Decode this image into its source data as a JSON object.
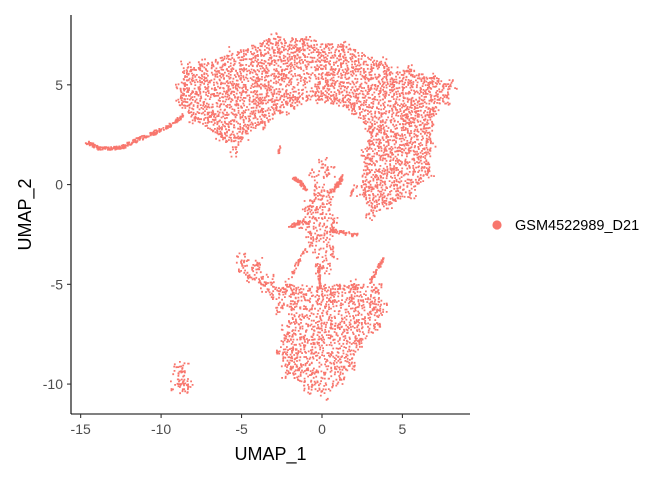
{
  "chart_data": {
    "type": "scatter",
    "title": "",
    "xlabel": "UMAP_1",
    "ylabel": "UMAP_2",
    "xlim": [
      -15.6,
      9.2
    ],
    "ylim": [
      -11.5,
      8.5
    ],
    "xticks": [
      -15,
      -10,
      -5,
      0,
      5
    ],
    "yticks": [
      -10,
      -5,
      0,
      5
    ],
    "grid": false,
    "legend_position": "right",
    "series": [
      {
        "name": "GSM4522989_D21",
        "color": "#F8766D",
        "clusters": [
          {
            "shape": "polygon",
            "density": 0.55,
            "points": [
              [
                -8.8,
                5.0
              ],
              [
                -8.5,
                5.9
              ],
              [
                -7.5,
                6.0
              ],
              [
                -5.5,
                6.6
              ],
              [
                -3.0,
                7.4
              ],
              [
                -1.0,
                7.3
              ],
              [
                1.5,
                7.0
              ],
              [
                3.8,
                6.1
              ],
              [
                5.5,
                5.7
              ],
              [
                7.0,
                5.4
              ],
              [
                8.1,
                5.0
              ],
              [
                7.8,
                4.3
              ],
              [
                7.1,
                3.8
              ],
              [
                6.8,
                2.0
              ],
              [
                6.7,
                0.5
              ],
              [
                5.6,
                -0.4
              ],
              [
                4.3,
                -1.0
              ],
              [
                3.0,
                -1.5
              ],
              [
                2.4,
                -0.3
              ],
              [
                2.6,
                1.5
              ],
              [
                3.0,
                2.7
              ],
              [
                1.8,
                3.8
              ],
              [
                -0.2,
                4.2
              ],
              [
                -2.0,
                3.8
              ],
              [
                -3.6,
                3.0
              ],
              [
                -4.8,
                2.5
              ],
              [
                -5.4,
                1.7
              ],
              [
                -6.5,
                2.5
              ],
              [
                -8.0,
                3.3
              ],
              [
                -8.8,
                4.1
              ]
            ]
          },
          {
            "shape": "polygon",
            "density": 0.45,
            "points": [
              [
                -2.3,
                -5.0
              ],
              [
                0.0,
                -5.1
              ],
              [
                2.0,
                -4.9
              ],
              [
                3.5,
                -5.2
              ],
              [
                3.9,
                -6.2
              ],
              [
                3.6,
                -7.2
              ],
              [
                2.3,
                -8.0
              ],
              [
                1.8,
                -9.0
              ],
              [
                1.2,
                -10.0
              ],
              [
                0.2,
                -10.5
              ],
              [
                -0.9,
                -10.2
              ],
              [
                -2.2,
                -9.4
              ],
              [
                -2.7,
                -8.2
              ],
              [
                -2.2,
                -7.2
              ],
              [
                -1.9,
                -6.3
              ]
            ]
          },
          {
            "shape": "polygon",
            "density": 0.4,
            "points": [
              [
                -5.0,
                -3.6
              ],
              [
                -4.0,
                -3.8
              ],
              [
                -3.2,
                -4.8
              ],
              [
                -2.3,
                -5.4
              ],
              [
                -2.6,
                -6.2
              ],
              [
                -3.6,
                -5.2
              ],
              [
                -4.6,
                -4.6
              ],
              [
                -5.1,
                -4.2
              ]
            ]
          },
          {
            "shape": "polygon",
            "density": 0.35,
            "points": [
              [
                -1.0,
                -1.1
              ],
              [
                0.3,
                -0.8
              ],
              [
                0.8,
                -1.8
              ],
              [
                0.7,
                -3.5
              ],
              [
                0.4,
                -4.2
              ],
              [
                -0.2,
                -4.3
              ],
              [
                -0.8,
                -3.2
              ],
              [
                -1.2,
                -2.0
              ]
            ]
          },
          {
            "shape": "polygon",
            "density": 0.3,
            "points": [
              [
                -0.5,
                -1.0
              ],
              [
                0.4,
                -0.6
              ],
              [
                0.5,
                0.6
              ],
              [
                0.1,
                1.1
              ],
              [
                -0.5,
                0.6
              ]
            ]
          },
          {
            "shape": "polygon",
            "density": 0.35,
            "points": [
              [
                -8.9,
                -9.1
              ],
              [
                -8.5,
                -9.2
              ],
              [
                -8.3,
                -10.0
              ],
              [
                -8.6,
                -10.2
              ],
              [
                -9.1,
                -10.1
              ],
              [
                -9.0,
                -9.4
              ]
            ]
          },
          {
            "shape": "line",
            "count": 260,
            "width": 0.18,
            "points": [
              [
                -14.6,
                2.1
              ],
              [
                -13.8,
                1.8
              ],
              [
                -12.5,
                1.85
              ],
              [
                -11.0,
                2.4
              ],
              [
                -9.5,
                2.9
              ],
              [
                -8.6,
                3.5
              ]
            ]
          },
          {
            "shape": "line",
            "count": 60,
            "width": 0.2,
            "points": [
              [
                -1.0,
                -0.3
              ],
              [
                -1.4,
                0.2
              ],
              [
                -1.8,
                0.3
              ]
            ]
          },
          {
            "shape": "line",
            "count": 60,
            "width": 0.2,
            "points": [
              [
                0.4,
                -0.5
              ],
              [
                0.9,
                -0.1
              ],
              [
                1.3,
                0.4
              ]
            ]
          },
          {
            "shape": "line",
            "count": 45,
            "width": 0.18,
            "points": [
              [
                -2.0,
                -2.1
              ],
              [
                -1.3,
                -1.9
              ],
              [
                -0.8,
                -1.9
              ]
            ]
          },
          {
            "shape": "line",
            "count": 50,
            "width": 0.2,
            "points": [
              [
                0.4,
                -2.3
              ],
              [
                1.2,
                -2.4
              ],
              [
                1.9,
                -2.5
              ],
              [
                2.3,
                -2.6
              ]
            ]
          },
          {
            "shape": "line",
            "count": 55,
            "width": 0.16,
            "points": [
              [
                3.8,
                -3.7
              ],
              [
                3.4,
                -4.3
              ],
              [
                3.0,
                -4.9
              ]
            ]
          },
          {
            "shape": "line",
            "count": 40,
            "width": 0.15,
            "points": [
              [
                -0.2,
                -4.2
              ],
              [
                -0.1,
                -5.2
              ]
            ]
          },
          {
            "shape": "line",
            "count": 30,
            "width": 0.15,
            "points": [
              [
                -1.0,
                -3.2
              ],
              [
                -1.5,
                -3.9
              ],
              [
                -1.9,
                -4.6
              ]
            ]
          },
          {
            "shape": "line",
            "count": 12,
            "width": 0.1,
            "points": [
              [
                -2.7,
                1.6
              ],
              [
                -2.6,
                1.9
              ]
            ]
          },
          {
            "shape": "line",
            "count": 10,
            "width": 0.08,
            "points": [
              [
                1.8,
                -0.6
              ],
              [
                2.0,
                0.0
              ]
            ]
          }
        ]
      }
    ]
  }
}
